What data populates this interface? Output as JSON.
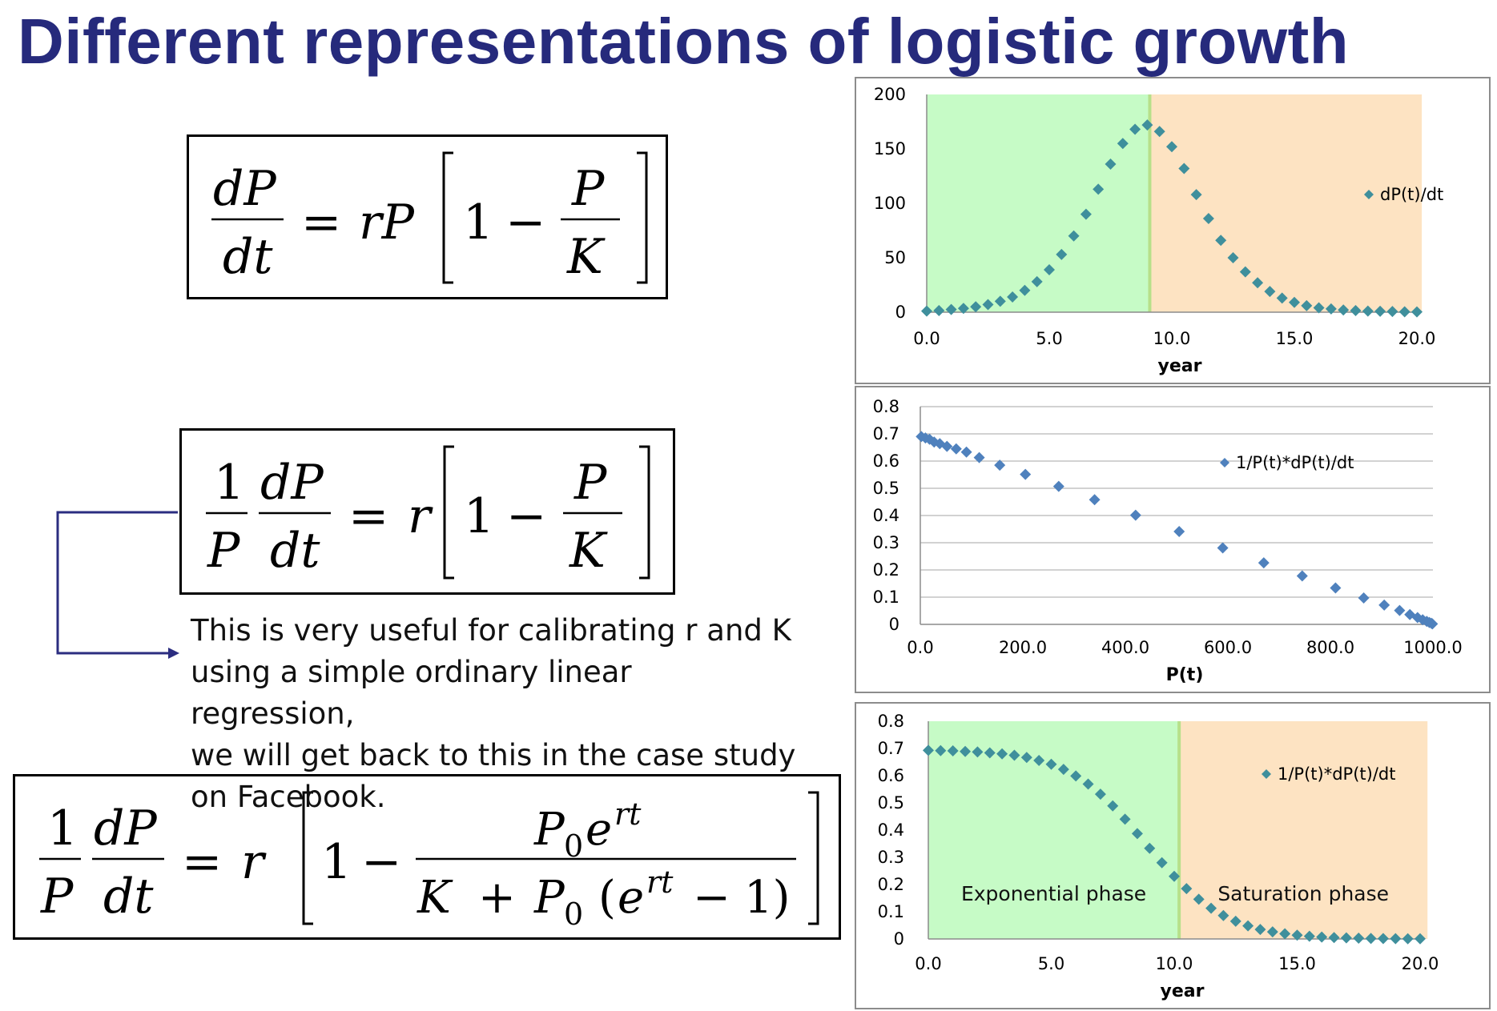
{
  "title": "Different representations of logistic growth",
  "colors": {
    "title": "#262a7c",
    "marker": "#4f81bd",
    "marker_alt": "#3f8f9c",
    "exp_phase_bg": "#c6fbc6",
    "sat_phase_bg": "#fde3c2",
    "connector": "#2b2d80"
  },
  "equations": [
    {
      "id": "eq1",
      "form": "dP/dt = rP [1 - P/K]"
    },
    {
      "id": "eq2",
      "form": "1/P dP/dt = r [1 - P/K]"
    },
    {
      "id": "eq3",
      "form": "1/P dP/dt = r [1 - P0 e^{rt} / (K + P0 (e^{rt} - 1))]"
    }
  ],
  "note_lines": [
    "This is very useful for calibrating r and K",
    "using a simple ordinary linear regression,",
    "we will get back to this in the case study",
    "on Facebook."
  ],
  "chart_data": [
    {
      "type": "scatter",
      "xlabel": "year",
      "ylabel": "",
      "xlim": [
        0,
        20
      ],
      "ylim": [
        0,
        200
      ],
      "x_ticks": [
        "0.0",
        "5.0",
        "10.0",
        "15.0",
        "20.0"
      ],
      "y_ticks": [
        "0",
        "50",
        "100",
        "150",
        "200"
      ],
      "grid": false,
      "legend": "right",
      "series": [
        {
          "name": "dP(t)/dt",
          "x": [
            0,
            0.5,
            1,
            1.5,
            2,
            2.5,
            3,
            3.5,
            4,
            4.5,
            5,
            5.5,
            6,
            6.5,
            7,
            7.5,
            8,
            8.5,
            9,
            9.5,
            10,
            10.5,
            11,
            11.5,
            12,
            12.5,
            13,
            13.5,
            14,
            14.5,
            15,
            15.5,
            16,
            16.5,
            17,
            17.5,
            18,
            18.5,
            19,
            19.5,
            20
          ],
          "y": [
            1,
            1.5,
            2.5,
            3.5,
            5,
            7,
            10,
            14,
            20,
            28,
            39,
            53,
            70,
            90,
            113,
            136,
            155,
            168,
            172,
            166,
            152,
            132,
            108,
            86,
            66,
            50,
            37,
            27,
            19,
            13,
            9,
            6,
            4,
            3,
            2,
            1.5,
            1,
            0.8,
            0.6,
            0.4,
            0.3
          ]
        }
      ],
      "phases": [
        {
          "label": "",
          "x_range": [
            0,
            9.1
          ],
          "color": "#c6fbc6"
        },
        {
          "label": "",
          "x_range": [
            9.1,
            20.2
          ],
          "color": "#fde3c2"
        }
      ]
    },
    {
      "type": "scatter",
      "xlabel": "P(t)",
      "ylabel": "",
      "xlim": [
        0,
        1000
      ],
      "ylim": [
        0,
        0.8
      ],
      "x_ticks": [
        "0.0",
        "200.0",
        "400.0",
        "600.0",
        "800.0",
        "1000.0"
      ],
      "y_ticks": [
        "0",
        "0.1",
        "0.2",
        "0.3",
        "0.4",
        "0.5",
        "0.6",
        "0.7",
        "0.8"
      ],
      "grid": true,
      "legend": "top-right",
      "series": [
        {
          "name": "1/P(t)*dP(t)/dt",
          "x": [
            2,
            10,
            18,
            27,
            38,
            52,
            70,
            90,
            115,
            155,
            205,
            270,
            340,
            420,
            505,
            590,
            670,
            745,
            810,
            865,
            905,
            935,
            955,
            970,
            980,
            988,
            993,
            997,
            999
          ],
          "y": [
            0.69,
            0.685,
            0.68,
            0.67,
            0.664,
            0.654,
            0.645,
            0.633,
            0.613,
            0.585,
            0.551,
            0.507,
            0.458,
            0.401,
            0.341,
            0.281,
            0.226,
            0.178,
            0.134,
            0.097,
            0.071,
            0.051,
            0.036,
            0.025,
            0.017,
            0.011,
            0.007,
            0.004,
            0.002
          ]
        }
      ]
    },
    {
      "type": "scatter",
      "xlabel": "year",
      "ylabel": "",
      "xlim": [
        0,
        20
      ],
      "ylim": [
        0,
        0.8
      ],
      "x_ticks": [
        "0.0",
        "5.0",
        "10.0",
        "15.0",
        "20.0"
      ],
      "y_ticks": [
        "0",
        "0.1",
        "0.2",
        "0.3",
        "0.4",
        "0.5",
        "0.6",
        "0.7",
        "0.8"
      ],
      "grid": false,
      "legend": "top-right",
      "series": [
        {
          "name": "1/P(t)*dP(t)/dt",
          "x": [
            0,
            0.5,
            1,
            1.5,
            2,
            2.5,
            3,
            3.5,
            4,
            4.5,
            5,
            5.5,
            6,
            6.5,
            7,
            7.5,
            8,
            8.5,
            9,
            9.5,
            10,
            10.5,
            11,
            11.5,
            12,
            12.5,
            13,
            13.5,
            14,
            14.5,
            15,
            15.5,
            16,
            16.5,
            17,
            17.5,
            18,
            18.5,
            19,
            19.5,
            20
          ],
          "y": [
            0.693,
            0.692,
            0.691,
            0.689,
            0.687,
            0.684,
            0.68,
            0.675,
            0.667,
            0.656,
            0.642,
            0.623,
            0.599,
            0.569,
            0.532,
            0.489,
            0.44,
            0.387,
            0.333,
            0.28,
            0.23,
            0.185,
            0.146,
            0.113,
            0.086,
            0.065,
            0.048,
            0.035,
            0.026,
            0.019,
            0.014,
            0.01,
            0.007,
            0.005,
            0.004,
            0.003,
            0.002,
            0.0015,
            0.001,
            0.0008,
            0.0006
          ]
        }
      ],
      "phases": [
        {
          "label": "Exponential phase",
          "x_range": [
            0,
            10.2
          ],
          "color": "#c6fbc6"
        },
        {
          "label": "Saturation phase",
          "x_range": [
            10.2,
            20.3
          ],
          "color": "#fde3c2"
        }
      ]
    }
  ]
}
